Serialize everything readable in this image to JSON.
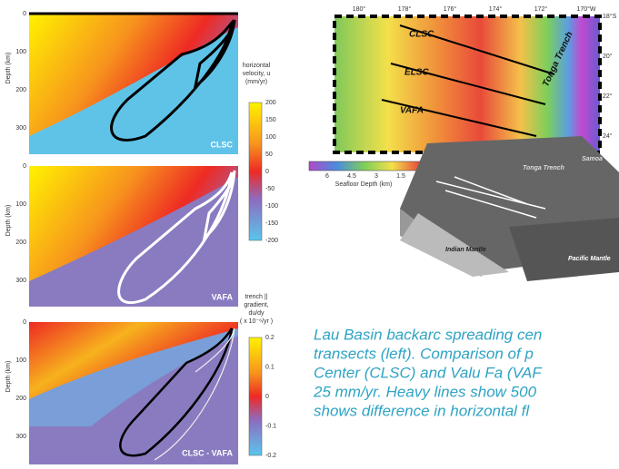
{
  "panels": [
    {
      "label": "CLSC",
      "y_label": "Depth (km)",
      "y_ticks": [
        "0",
        "100",
        "200",
        "300"
      ]
    },
    {
      "label": "VAFA",
      "y_label": "Depth (km)",
      "y_ticks": [
        "0",
        "100",
        "200",
        "300"
      ]
    },
    {
      "label": "CLSC - VAFA",
      "y_label": "Depth (km)",
      "y_ticks": [
        "0",
        "100",
        "200",
        "300"
      ]
    }
  ],
  "colorbars": [
    {
      "title": [
        "horizontal",
        "velocity, u",
        "(mm/yr)"
      ],
      "ticks": [
        "200",
        "150",
        "100",
        "50",
        "0",
        "-50",
        "-100",
        "-150",
        "-200"
      ]
    },
    {
      "title": [
        "trench || ",
        "gradient,",
        "du/dy",
        "( x 10⁻⁶/yr )"
      ],
      "ticks": [
        "0.2",
        "0.1",
        "0",
        "-0.1",
        "-0.2"
      ]
    }
  ],
  "map": {
    "lon_labels": [
      "180°",
      "178°",
      "176°",
      "174°",
      "172°",
      "170°W"
    ],
    "lat_labels": [
      "18°S",
      "20°",
      "22°",
      "24°"
    ],
    "features": [
      "CLSC",
      "ELSC",
      "VAFA",
      "Tonga Trench"
    ],
    "depth_title": "Seafloor Depth (km)",
    "depth_ticks": [
      "6",
      "4.5",
      "3",
      "1.5"
    ]
  },
  "block": {
    "labels": [
      "Tonga Trench",
      "Samoa",
      "Indian Mantle",
      "Pacific Mantle"
    ]
  },
  "caption": [
    "Lau Basin backarc spreading cen",
    "transects (left). Comparison of p",
    "Center (CLSC) and Valu Fa (VAF",
    "25 mm/yr. Heavy lines show 500",
    "shows difference in horizontal fl"
  ]
}
